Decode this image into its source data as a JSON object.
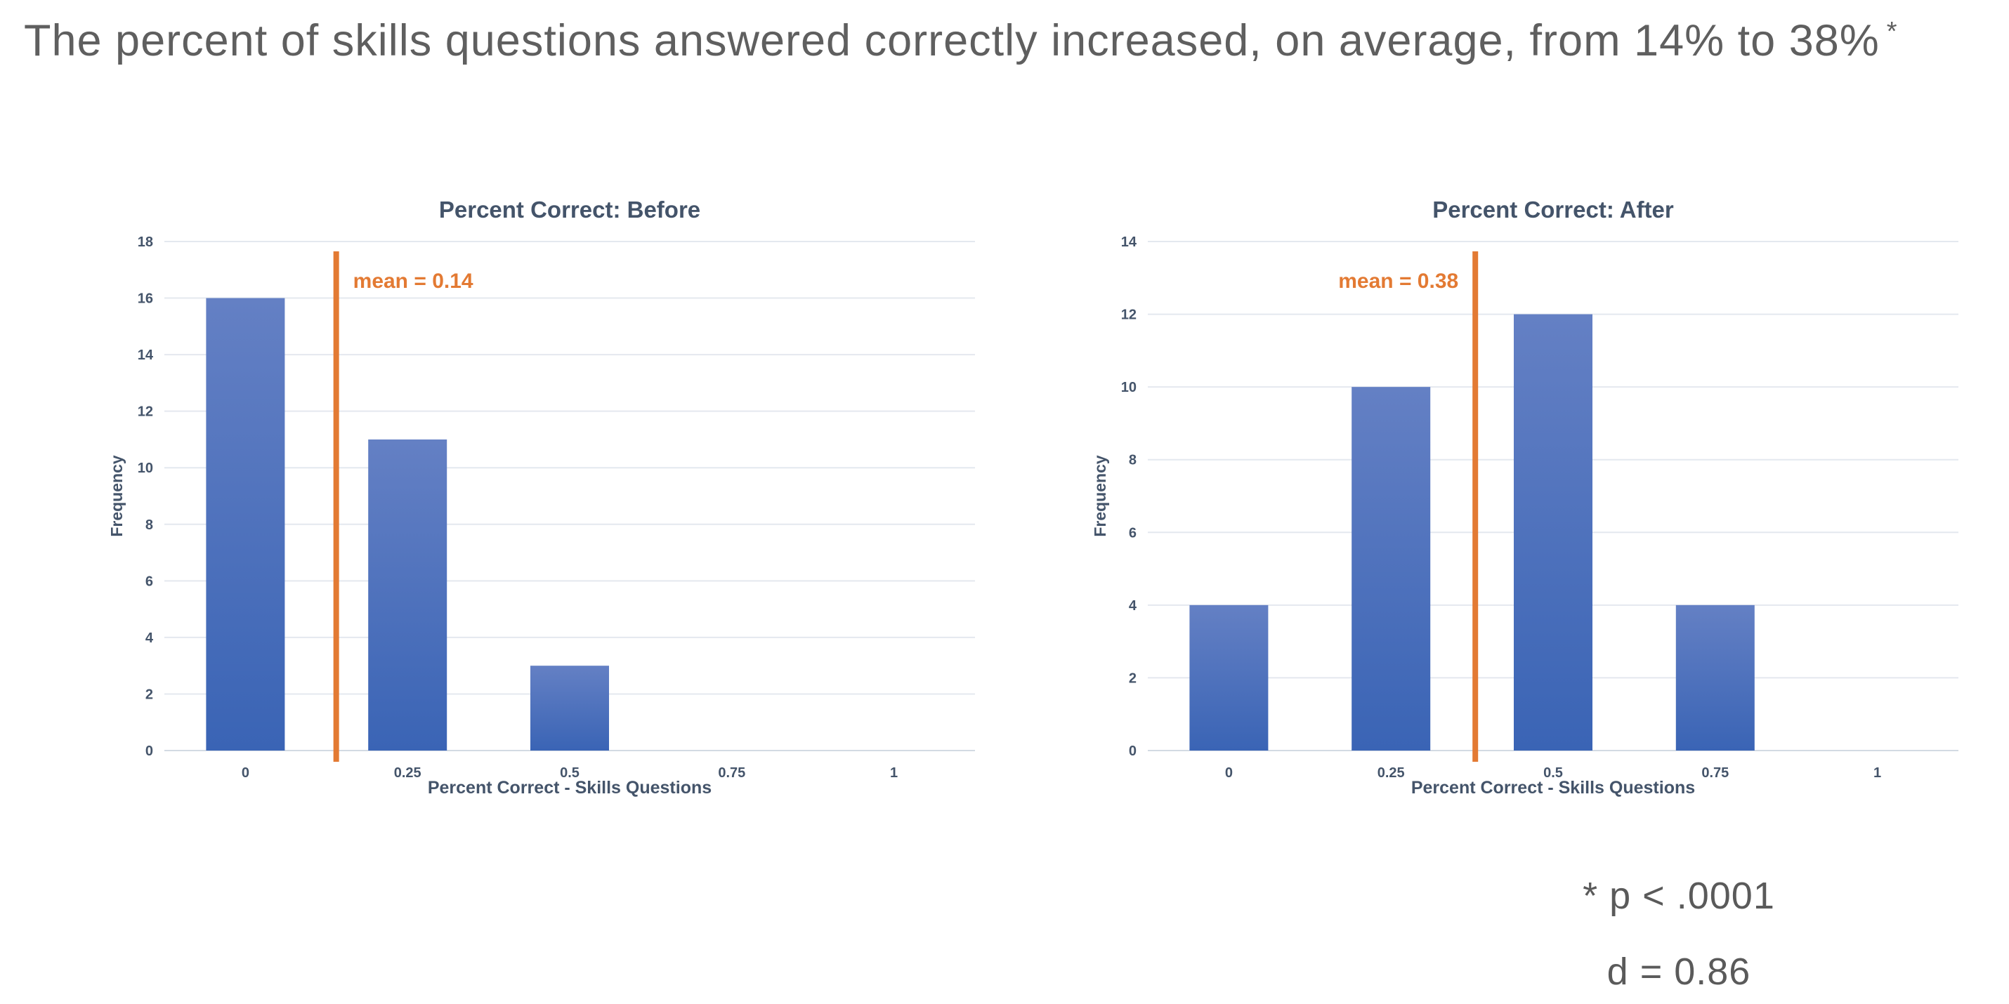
{
  "page": {
    "title": "The percent of skills questions answered correctly increased, on average, from 14% to 38%",
    "title_superscript": "*",
    "background": "#ffffff"
  },
  "colors": {
    "title_text": "#5f5f5f",
    "chart_text": "#44546A",
    "bar_top": "#6480C4",
    "bar_bottom": "#3A64B5",
    "gridline": "#E4E8EF",
    "axis_line": "#D3DAE3",
    "mean_line": "#E37A33",
    "annotation_text": "#5a5a5a"
  },
  "chart_data": [
    {
      "type": "bar",
      "title": "Percent Correct: Before",
      "categories": [
        "0",
        "0.25",
        "0.5",
        "0.75",
        "1"
      ],
      "values": [
        16,
        11,
        3,
        0,
        0
      ],
      "xlabel": "Percent Correct - Skills Questions",
      "ylabel": "Frequency",
      "ylim": [
        0,
        18
      ],
      "ytick_step": 2,
      "grid": true,
      "legend": "none",
      "mean": 0.14,
      "mean_label": "mean = 0.14",
      "mean_label_side": "right"
    },
    {
      "type": "bar",
      "title": "Percent Correct: After",
      "categories": [
        "0",
        "0.25",
        "0.5",
        "0.75",
        "1"
      ],
      "values": [
        4,
        10,
        12,
        4,
        0
      ],
      "xlabel": "Percent Correct - Skills Questions",
      "ylabel": "Frequency",
      "ylim": [
        0,
        14
      ],
      "ytick_step": 2,
      "grid": true,
      "legend": "none",
      "mean": 0.38,
      "mean_label": "mean = 0.38",
      "mean_label_side": "left"
    }
  ],
  "annotations": {
    "p_value": "* p < .0001",
    "effect_size": "d = 0.86"
  }
}
